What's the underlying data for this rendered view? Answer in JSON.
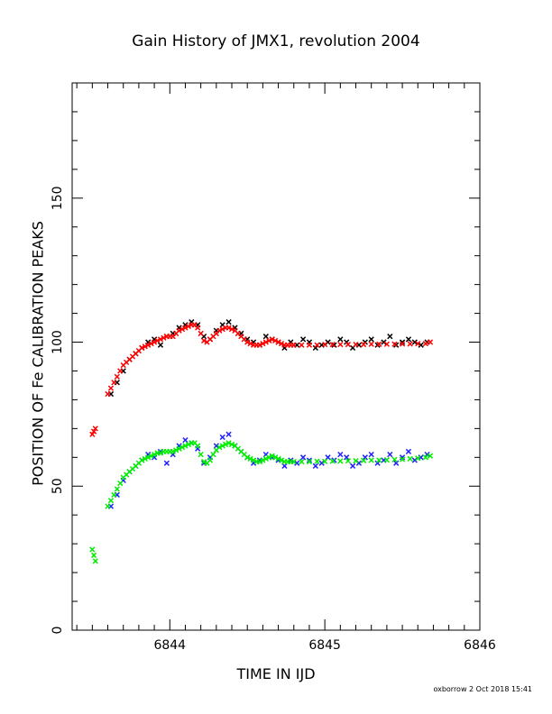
{
  "footer": "oxborrow  2 Oct  2018 15:41",
  "chart_data": {
    "type": "scatter",
    "title": "Gain History of JMX1, revolution 2004",
    "xlabel": "TIME IN IJD",
    "ylabel": "POSITION OF Fe CALIBRATION PEAKS",
    "xlim": [
      6843.37,
      6846.0
    ],
    "ylim": [
      0,
      190
    ],
    "xticks": [
      6844,
      6845,
      6846
    ],
    "xtick_labels": [
      "6844",
      "6845",
      "6846"
    ],
    "yticks": [
      0,
      50,
      100,
      150
    ],
    "ytick_labels": [
      "0",
      "50",
      "100",
      "150"
    ],
    "grid": false,
    "series": [
      {
        "marker": "x",
        "color": "#000000",
        "x": [
          6843.62,
          6843.66,
          6843.7,
          6843.74,
          6843.78,
          6843.82,
          6843.86,
          6843.9,
          6843.94,
          6843.98,
          6844.02,
          6844.06,
          6844.1,
          6844.14,
          6844.18,
          6844.22,
          6844.26,
          6844.3,
          6844.34,
          6844.38,
          6844.42,
          6844.46,
          6844.5,
          6844.54,
          6844.58,
          6844.62,
          6844.66,
          6844.7,
          6844.74,
          6844.78,
          6844.82,
          6844.86,
          6844.9,
          6844.94,
          6844.98,
          6845.02,
          6845.06,
          6845.1,
          6845.14,
          6845.18,
          6845.22,
          6845.26,
          6845.3,
          6845.34,
          6845.38,
          6845.42,
          6845.46,
          6845.5,
          6845.54,
          6845.58,
          6845.62,
          6845.66
        ],
        "y": [
          82,
          86,
          90,
          94,
          96,
          98,
          100,
          101,
          99,
          102,
          103,
          105,
          106,
          107,
          106,
          102,
          101,
          104,
          106,
          107,
          105,
          103,
          101,
          100,
          99,
          102,
          101,
          100,
          98,
          100,
          99,
          101,
          100,
          98,
          99,
          100,
          99,
          101,
          100,
          98,
          99,
          100,
          101,
          99,
          100,
          102,
          99,
          100,
          101,
          100,
          99,
          100
        ]
      },
      {
        "marker": "x",
        "color": "#2020ff",
        "x": [
          6843.62,
          6843.66,
          6843.7,
          6843.74,
          6843.78,
          6843.82,
          6843.86,
          6843.9,
          6843.94,
          6843.98,
          6844.02,
          6844.06,
          6844.1,
          6844.14,
          6844.18,
          6844.22,
          6844.26,
          6844.3,
          6844.34,
          6844.38,
          6844.42,
          6844.46,
          6844.5,
          6844.54,
          6844.58,
          6844.62,
          6844.66,
          6844.7,
          6844.74,
          6844.78,
          6844.82,
          6844.86,
          6844.9,
          6844.94,
          6844.98,
          6845.02,
          6845.06,
          6845.1,
          6845.14,
          6845.18,
          6845.22,
          6845.26,
          6845.3,
          6845.34,
          6845.38,
          6845.42,
          6845.46,
          6845.5,
          6845.54,
          6845.58,
          6845.62,
          6845.66
        ],
        "y": [
          43,
          47,
          52,
          55,
          57,
          59,
          61,
          60,
          62,
          58,
          61,
          64,
          66,
          65,
          63,
          58,
          60,
          64,
          67,
          68,
          64,
          62,
          60,
          58,
          59,
          61,
          60,
          59,
          57,
          59,
          58,
          60,
          59,
          57,
          58,
          60,
          59,
          61,
          60,
          57,
          58,
          60,
          61,
          58,
          59,
          61,
          58,
          60,
          62,
          59,
          60,
          61
        ]
      },
      {
        "marker": "x",
        "color": "#ff0000",
        "x": [
          6843.5,
          6843.51,
          6843.52,
          6843.6,
          6843.62,
          6843.64,
          6843.66,
          6843.68,
          6843.7,
          6843.72,
          6843.74,
          6843.76,
          6843.78,
          6843.8,
          6843.82,
          6843.84,
          6843.86,
          6843.88,
          6843.9,
          6843.92,
          6843.94,
          6843.96,
          6843.98,
          6844.0,
          6844.02,
          6844.04,
          6844.06,
          6844.08,
          6844.1,
          6844.12,
          6844.14,
          6844.16,
          6844.18,
          6844.2,
          6844.22,
          6844.24,
          6844.26,
          6844.28,
          6844.3,
          6844.32,
          6844.34,
          6844.36,
          6844.38,
          6844.4,
          6844.42,
          6844.44,
          6844.46,
          6844.48,
          6844.5,
          6844.52,
          6844.54,
          6844.56,
          6844.58,
          6844.6,
          6844.62,
          6844.64,
          6844.66,
          6844.68,
          6844.7,
          6844.72,
          6844.74,
          6844.76,
          6844.78,
          6844.8,
          6844.85,
          6844.9,
          6844.95,
          6845.0,
          6845.05,
          6845.1,
          6845.15,
          6845.2,
          6845.25,
          6845.3,
          6845.35,
          6845.4,
          6845.45,
          6845.5,
          6845.55,
          6845.6,
          6845.65,
          6845.68
        ],
        "y": [
          68,
          69,
          70,
          82,
          84,
          86,
          88,
          90,
          92,
          93,
          94,
          95,
          96,
          97,
          98,
          98.5,
          99,
          99.5,
          100,
          100.5,
          101,
          101.5,
          102,
          102,
          102,
          103,
          104,
          104.5,
          105,
          105.5,
          106,
          106,
          105,
          103,
          100.5,
          100,
          101,
          102,
          103,
          104,
          104.5,
          105,
          105,
          104.5,
          104,
          103,
          102,
          101,
          100,
          99.5,
          99,
          99,
          99,
          99.5,
          100,
          100.5,
          101,
          100.5,
          100,
          99.5,
          99,
          99,
          99,
          99,
          99,
          99,
          99,
          99.2,
          99.2,
          99.2,
          99.2,
          99.2,
          99.2,
          99.3,
          99.3,
          99.3,
          99.3,
          99.4,
          99.4,
          99.5,
          99.5,
          100
        ]
      },
      {
        "marker": "x",
        "color": "#00ee00",
        "x": [
          6843.5,
          6843.51,
          6843.52,
          6843.6,
          6843.62,
          6843.64,
          6843.66,
          6843.68,
          6843.7,
          6843.72,
          6843.74,
          6843.76,
          6843.78,
          6843.8,
          6843.82,
          6843.84,
          6843.86,
          6843.88,
          6843.9,
          6843.92,
          6843.94,
          6843.96,
          6843.98,
          6844.0,
          6844.02,
          6844.04,
          6844.06,
          6844.08,
          6844.1,
          6844.12,
          6844.14,
          6844.16,
          6844.18,
          6844.2,
          6844.22,
          6844.24,
          6844.26,
          6844.28,
          6844.3,
          6844.32,
          6844.34,
          6844.36,
          6844.38,
          6844.4,
          6844.42,
          6844.44,
          6844.46,
          6844.48,
          6844.5,
          6844.52,
          6844.54,
          6844.56,
          6844.58,
          6844.6,
          6844.62,
          6844.64,
          6844.66,
          6844.68,
          6844.7,
          6844.72,
          6844.74,
          6844.76,
          6844.78,
          6844.8,
          6844.85,
          6844.9,
          6844.95,
          6845.0,
          6845.05,
          6845.1,
          6845.15,
          6845.2,
          6845.25,
          6845.3,
          6845.35,
          6845.4,
          6845.45,
          6845.5,
          6845.55,
          6845.6,
          6845.65,
          6845.68
        ],
        "y": [
          28,
          26,
          24,
          43,
          45,
          47,
          49,
          51,
          53,
          54,
          55,
          56,
          57,
          58,
          59,
          59.5,
          60,
          60.5,
          61,
          61.5,
          61.5,
          62,
          62,
          62,
          62,
          62.5,
          63,
          63.5,
          64,
          64.5,
          65,
          65,
          64,
          61,
          58.5,
          58,
          59,
          61,
          62.5,
          63.5,
          64,
          64.5,
          65,
          64.5,
          64,
          63,
          62,
          61,
          60,
          59.5,
          59,
          58.5,
          58.5,
          59,
          59.5,
          60,
          60.5,
          60,
          59.5,
          59,
          58.5,
          58.5,
          58.5,
          58.5,
          58.5,
          58.5,
          58.6,
          58.6,
          58.7,
          58.7,
          58.8,
          58.8,
          58.9,
          59,
          59,
          59.1,
          59.2,
          59.3,
          59.5,
          59.7,
          60,
          60.5
        ]
      }
    ]
  }
}
